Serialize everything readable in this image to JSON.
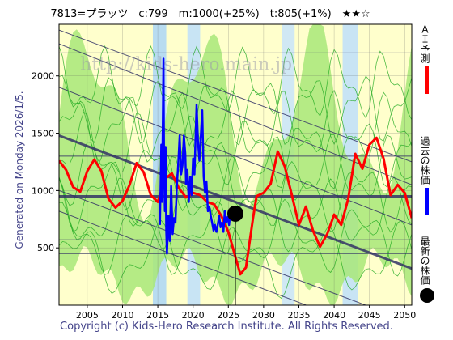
{
  "header": {
    "title": "7813=プラッツ　c:799　m:1000(+25%)　t:805(+1%)　★★☆"
  },
  "side_label": "Generated on Monday 2026/1/5.",
  "footer": "Copyright (c) Kids-Hero Research Institute. All Rights Reserved.",
  "watermark": "http://kids-hero.main.jp",
  "legend": [
    {
      "label": "ＡＩ予測",
      "color": "#ff0000"
    },
    {
      "label": "過去の株価",
      "color": "#0000ff"
    },
    {
      "label": "最新の株価",
      "color": "#000000"
    }
  ],
  "chart_data": {
    "type": "line",
    "xlim": [
      2001,
      2051
    ],
    "ylim": [
      0,
      2450
    ],
    "x_ticks": [
      2005,
      2010,
      2015,
      2020,
      2025,
      2030,
      2035,
      2040,
      2045,
      2050
    ],
    "y_ticks": [
      500,
      1000,
      1500,
      2000
    ],
    "latest": {
      "x": 2026.0,
      "y": 799
    },
    "series": [
      {
        "name": "ＡＩ予測",
        "color": "#ff0000",
        "points": [
          [
            2001,
            1260
          ],
          [
            2002,
            1180
          ],
          [
            2003,
            1030
          ],
          [
            2004,
            990
          ],
          [
            2005,
            1170
          ],
          [
            2006,
            1270
          ],
          [
            2007,
            1170
          ],
          [
            2008,
            930
          ],
          [
            2009,
            850
          ],
          [
            2010,
            910
          ],
          [
            2011,
            1050
          ],
          [
            2012,
            1240
          ],
          [
            2013,
            1160
          ],
          [
            2014,
            960
          ],
          [
            2015,
            900
          ],
          [
            2016,
            1100
          ],
          [
            2017,
            1150
          ],
          [
            2018,
            1020
          ],
          [
            2019,
            940
          ],
          [
            2020,
            980
          ],
          [
            2021,
            960
          ],
          [
            2022,
            900
          ],
          [
            2023,
            880
          ],
          [
            2024,
            780
          ],
          [
            2025,
            640
          ],
          [
            2026,
            420
          ],
          [
            2026.7,
            270
          ],
          [
            2027.5,
            330
          ],
          [
            2028.5,
            760
          ],
          [
            2029,
            950
          ],
          [
            2030,
            980
          ],
          [
            2031,
            1060
          ],
          [
            2032,
            1340
          ],
          [
            2033,
            1210
          ],
          [
            2034,
            960
          ],
          [
            2035,
            700
          ],
          [
            2036,
            860
          ],
          [
            2037,
            650
          ],
          [
            2038,
            510
          ],
          [
            2039,
            620
          ],
          [
            2040,
            790
          ],
          [
            2041,
            700
          ],
          [
            2042,
            930
          ],
          [
            2043,
            1320
          ],
          [
            2044,
            1190
          ],
          [
            2045,
            1400
          ],
          [
            2046,
            1460
          ],
          [
            2047,
            1280
          ],
          [
            2048,
            960
          ],
          [
            2049,
            1050
          ],
          [
            2050,
            980
          ],
          [
            2051,
            760
          ]
        ]
      },
      {
        "name": "過去の株価",
        "color": "#0000ff",
        "points": [
          [
            2015.3,
            700
          ],
          [
            2015.5,
            1400
          ],
          [
            2015.6,
            900
          ],
          [
            2015.8,
            2150
          ],
          [
            2015.9,
            1150
          ],
          [
            2016.0,
            820
          ],
          [
            2016.1,
            1380
          ],
          [
            2016.2,
            650
          ],
          [
            2016.3,
            450
          ],
          [
            2016.5,
            780
          ],
          [
            2016.7,
            560
          ],
          [
            2016.9,
            1040
          ],
          [
            2017.1,
            620
          ],
          [
            2017.3,
            760
          ],
          [
            2017.5,
            720
          ],
          [
            2017.7,
            1040
          ],
          [
            2017.9,
            1240
          ],
          [
            2018.1,
            1480
          ],
          [
            2018.3,
            1140
          ],
          [
            2018.5,
            1220
          ],
          [
            2018.7,
            1480
          ],
          [
            2018.9,
            1320
          ],
          [
            2019.0,
            1060
          ],
          [
            2019.2,
            1180
          ],
          [
            2019.4,
            900
          ],
          [
            2019.6,
            1120
          ],
          [
            2019.8,
            960
          ],
          [
            2020.0,
            1280
          ],
          [
            2020.2,
            1140
          ],
          [
            2020.4,
            1560
          ],
          [
            2020.5,
            1750
          ],
          [
            2020.7,
            1420
          ],
          [
            2020.9,
            1260
          ],
          [
            2021.1,
            1480
          ],
          [
            2021.3,
            1700
          ],
          [
            2021.5,
            1120
          ],
          [
            2021.7,
            980
          ],
          [
            2021.9,
            1080
          ],
          [
            2022.1,
            820
          ],
          [
            2022.3,
            860
          ],
          [
            2022.5,
            780
          ],
          [
            2022.7,
            720
          ],
          [
            2022.9,
            650
          ],
          [
            2023.1,
            700
          ],
          [
            2023.3,
            640
          ],
          [
            2023.5,
            700
          ],
          [
            2023.7,
            780
          ],
          [
            2023.9,
            680
          ],
          [
            2024.1,
            720
          ],
          [
            2024.3,
            640
          ],
          [
            2024.5,
            820
          ],
          [
            2024.7,
            720
          ],
          [
            2024.9,
            770
          ],
          [
            2025.1,
            700
          ],
          [
            2025.3,
            830
          ],
          [
            2025.5,
            760
          ],
          [
            2025.8,
            790
          ],
          [
            2026.0,
            799
          ]
        ]
      }
    ]
  },
  "colors": {
    "plot_bg": "#ffffcc",
    "green_fill": "#a8e878",
    "band_line": "#22aa22",
    "trend": "#333366",
    "grid": "#555555"
  }
}
